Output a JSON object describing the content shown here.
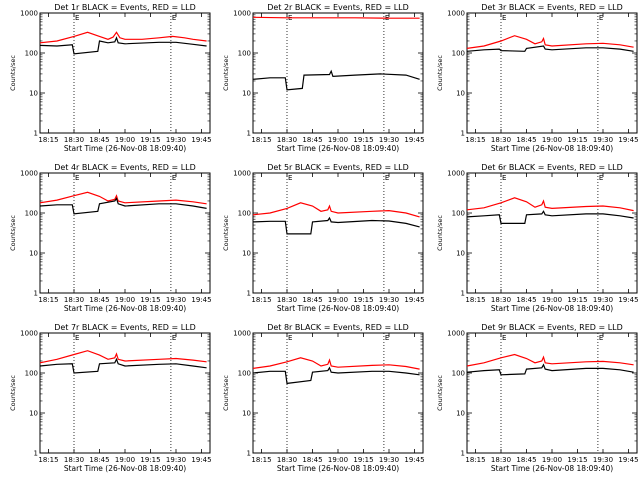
{
  "chart_data": {
    "type": "line",
    "layout": "3x3 grid",
    "y_scale": "log",
    "ylim": [
      1,
      1000
    ],
    "y_ticks": [
      "1",
      "10",
      "100",
      "1000"
    ],
    "x_tick_labels": [
      "18:15",
      "18:30",
      "18:45",
      "19:00",
      "19:15",
      "19:30",
      "19:45"
    ],
    "x_tick_minutes": [
      15,
      30,
      45,
      60,
      75,
      90,
      105
    ],
    "xlim_minutes": [
      10,
      110
    ],
    "dotted_markers_minutes": [
      30,
      87
    ],
    "marker_labels": [
      "E",
      "E"
    ],
    "xlabel": "Start Time (26-Nov-08 18:09:40)",
    "ylabel": "Counts/sec",
    "series_colors": {
      "events": "#000000",
      "lld": "#ff0000"
    },
    "panels": [
      {
        "title": "Det 1r BLACK = Events, RED = LLD",
        "lld": [
          [
            10,
            180
          ],
          [
            20,
            200
          ],
          [
            30,
            260
          ],
          [
            38,
            330
          ],
          [
            45,
            260
          ],
          [
            50,
            220
          ],
          [
            53,
            250
          ],
          [
            55,
            330
          ],
          [
            57,
            240
          ],
          [
            60,
            220
          ],
          [
            70,
            220
          ],
          [
            80,
            240
          ],
          [
            88,
            260
          ],
          [
            95,
            240
          ],
          [
            100,
            220
          ],
          [
            108,
            200
          ]
        ],
        "events": [
          [
            10,
            155
          ],
          [
            20,
            150
          ],
          [
            29,
            160
          ],
          [
            30,
            95
          ],
          [
            44,
            110
          ],
          [
            45,
            200
          ],
          [
            50,
            180
          ],
          [
            54,
            190
          ],
          [
            55,
            240
          ],
          [
            56,
            180
          ],
          [
            60,
            170
          ],
          [
            80,
            185
          ],
          [
            90,
            185
          ],
          [
            100,
            165
          ],
          [
            108,
            150
          ]
        ]
      },
      {
        "title": "Det 2r BLACK = Events, RED = LLD",
        "lld": [
          [
            10,
            780
          ],
          [
            30,
            760
          ],
          [
            50,
            760
          ],
          [
            70,
            760
          ],
          [
            90,
            740
          ],
          [
            108,
            740
          ]
        ],
        "events": [
          [
            10,
            22
          ],
          [
            20,
            24
          ],
          [
            29,
            24
          ],
          [
            30,
            12
          ],
          [
            39,
            13
          ],
          [
            40,
            28
          ],
          [
            55,
            29
          ],
          [
            56,
            35
          ],
          [
            57,
            26
          ],
          [
            70,
            28
          ],
          [
            85,
            30
          ],
          [
            100,
            28
          ],
          [
            108,
            22
          ]
        ]
      },
      {
        "title": "Det 3r BLACK = Events, RED = LLD",
        "lld": [
          [
            10,
            130
          ],
          [
            20,
            150
          ],
          [
            30,
            200
          ],
          [
            38,
            270
          ],
          [
            45,
            220
          ],
          [
            50,
            170
          ],
          [
            54,
            190
          ],
          [
            55,
            230
          ],
          [
            56,
            160
          ],
          [
            60,
            150
          ],
          [
            80,
            170
          ],
          [
            90,
            175
          ],
          [
            100,
            160
          ],
          [
            108,
            140
          ]
        ],
        "events": [
          [
            10,
            110
          ],
          [
            20,
            120
          ],
          [
            29,
            125
          ],
          [
            30,
            115
          ],
          [
            44,
            110
          ],
          [
            45,
            130
          ],
          [
            55,
            150
          ],
          [
            56,
            125
          ],
          [
            60,
            120
          ],
          [
            80,
            135
          ],
          [
            90,
            135
          ],
          [
            100,
            125
          ],
          [
            108,
            110
          ]
        ]
      },
      {
        "title": "Det 4r BLACK = Events, RED = LLD",
        "lld": [
          [
            10,
            180
          ],
          [
            20,
            210
          ],
          [
            30,
            270
          ],
          [
            38,
            330
          ],
          [
            45,
            260
          ],
          [
            50,
            200
          ],
          [
            54,
            220
          ],
          [
            55,
            270
          ],
          [
            56,
            200
          ],
          [
            60,
            180
          ],
          [
            80,
            200
          ],
          [
            90,
            210
          ],
          [
            100,
            190
          ],
          [
            108,
            170
          ]
        ],
        "events": [
          [
            10,
            150
          ],
          [
            20,
            160
          ],
          [
            29,
            160
          ],
          [
            30,
            95
          ],
          [
            44,
            110
          ],
          [
            45,
            170
          ],
          [
            54,
            200
          ],
          [
            55,
            230
          ],
          [
            56,
            170
          ],
          [
            60,
            150
          ],
          [
            80,
            170
          ],
          [
            90,
            170
          ],
          [
            100,
            150
          ],
          [
            108,
            130
          ]
        ]
      },
      {
        "title": "Det 5r BLACK = Events, RED = LLD",
        "lld": [
          [
            10,
            90
          ],
          [
            20,
            100
          ],
          [
            30,
            130
          ],
          [
            38,
            180
          ],
          [
            45,
            150
          ],
          [
            50,
            110
          ],
          [
            54,
            120
          ],
          [
            55,
            150
          ],
          [
            56,
            110
          ],
          [
            60,
            100
          ],
          [
            80,
            110
          ],
          [
            90,
            115
          ],
          [
            100,
            100
          ],
          [
            108,
            80
          ]
        ],
        "events": [
          [
            10,
            60
          ],
          [
            20,
            62
          ],
          [
            29,
            62
          ],
          [
            30,
            30
          ],
          [
            44,
            30
          ],
          [
            45,
            60
          ],
          [
            54,
            65
          ],
          [
            55,
            75
          ],
          [
            56,
            60
          ],
          [
            60,
            58
          ],
          [
            80,
            65
          ],
          [
            90,
            63
          ],
          [
            100,
            55
          ],
          [
            108,
            45
          ]
        ]
      },
      {
        "title": "Det 6r BLACK = Events, RED = LLD",
        "lld": [
          [
            10,
            120
          ],
          [
            20,
            135
          ],
          [
            30,
            180
          ],
          [
            38,
            240
          ],
          [
            45,
            190
          ],
          [
            50,
            140
          ],
          [
            54,
            160
          ],
          [
            55,
            200
          ],
          [
            56,
            140
          ],
          [
            60,
            130
          ],
          [
            80,
            145
          ],
          [
            90,
            150
          ],
          [
            100,
            135
          ],
          [
            108,
            115
          ]
        ],
        "events": [
          [
            10,
            80
          ],
          [
            20,
            85
          ],
          [
            29,
            90
          ],
          [
            30,
            55
          ],
          [
            44,
            55
          ],
          [
            45,
            90
          ],
          [
            54,
            95
          ],
          [
            55,
            110
          ],
          [
            56,
            90
          ],
          [
            60,
            85
          ],
          [
            80,
            95
          ],
          [
            90,
            95
          ],
          [
            100,
            85
          ],
          [
            108,
            75
          ]
        ]
      },
      {
        "title": "Det 7r BLACK = Events, RED = LLD",
        "lld": [
          [
            10,
            180
          ],
          [
            20,
            220
          ],
          [
            30,
            290
          ],
          [
            38,
            360
          ],
          [
            45,
            280
          ],
          [
            50,
            220
          ],
          [
            54,
            240
          ],
          [
            55,
            300
          ],
          [
            56,
            220
          ],
          [
            60,
            200
          ],
          [
            80,
            220
          ],
          [
            90,
            230
          ],
          [
            100,
            210
          ],
          [
            108,
            190
          ]
        ],
        "events": [
          [
            10,
            150
          ],
          [
            20,
            165
          ],
          [
            29,
            170
          ],
          [
            30,
            100
          ],
          [
            44,
            110
          ],
          [
            45,
            170
          ],
          [
            54,
            180
          ],
          [
            55,
            220
          ],
          [
            56,
            170
          ],
          [
            60,
            150
          ],
          [
            80,
            165
          ],
          [
            90,
            170
          ],
          [
            100,
            150
          ],
          [
            108,
            135
          ]
        ]
      },
      {
        "title": "Det 8r BLACK = Events, RED = LLD",
        "lld": [
          [
            10,
            130
          ],
          [
            20,
            150
          ],
          [
            30,
            190
          ],
          [
            38,
            240
          ],
          [
            45,
            200
          ],
          [
            50,
            150
          ],
          [
            54,
            165
          ],
          [
            55,
            210
          ],
          [
            56,
            150
          ],
          [
            60,
            140
          ],
          [
            80,
            155
          ],
          [
            90,
            160
          ],
          [
            100,
            145
          ],
          [
            108,
            125
          ]
        ],
        "events": [
          [
            10,
            100
          ],
          [
            20,
            110
          ],
          [
            29,
            110
          ],
          [
            30,
            55
          ],
          [
            44,
            65
          ],
          [
            45,
            105
          ],
          [
            54,
            115
          ],
          [
            55,
            135
          ],
          [
            56,
            105
          ],
          [
            60,
            100
          ],
          [
            80,
            110
          ],
          [
            90,
            110
          ],
          [
            100,
            100
          ],
          [
            108,
            90
          ]
        ]
      },
      {
        "title": "Det 9r BLACK = Events, RED = LLD",
        "lld": [
          [
            10,
            150
          ],
          [
            20,
            180
          ],
          [
            30,
            240
          ],
          [
            38,
            290
          ],
          [
            45,
            230
          ],
          [
            50,
            180
          ],
          [
            54,
            200
          ],
          [
            55,
            250
          ],
          [
            56,
            180
          ],
          [
            60,
            170
          ],
          [
            80,
            190
          ],
          [
            90,
            195
          ],
          [
            100,
            180
          ],
          [
            108,
            160
          ]
        ],
        "events": [
          [
            10,
            105
          ],
          [
            20,
            115
          ],
          [
            29,
            120
          ],
          [
            30,
            90
          ],
          [
            44,
            95
          ],
          [
            45,
            125
          ],
          [
            54,
            135
          ],
          [
            55,
            160
          ],
          [
            56,
            125
          ],
          [
            60,
            115
          ],
          [
            80,
            130
          ],
          [
            90,
            130
          ],
          [
            100,
            120
          ],
          [
            108,
            105
          ]
        ]
      }
    ]
  }
}
